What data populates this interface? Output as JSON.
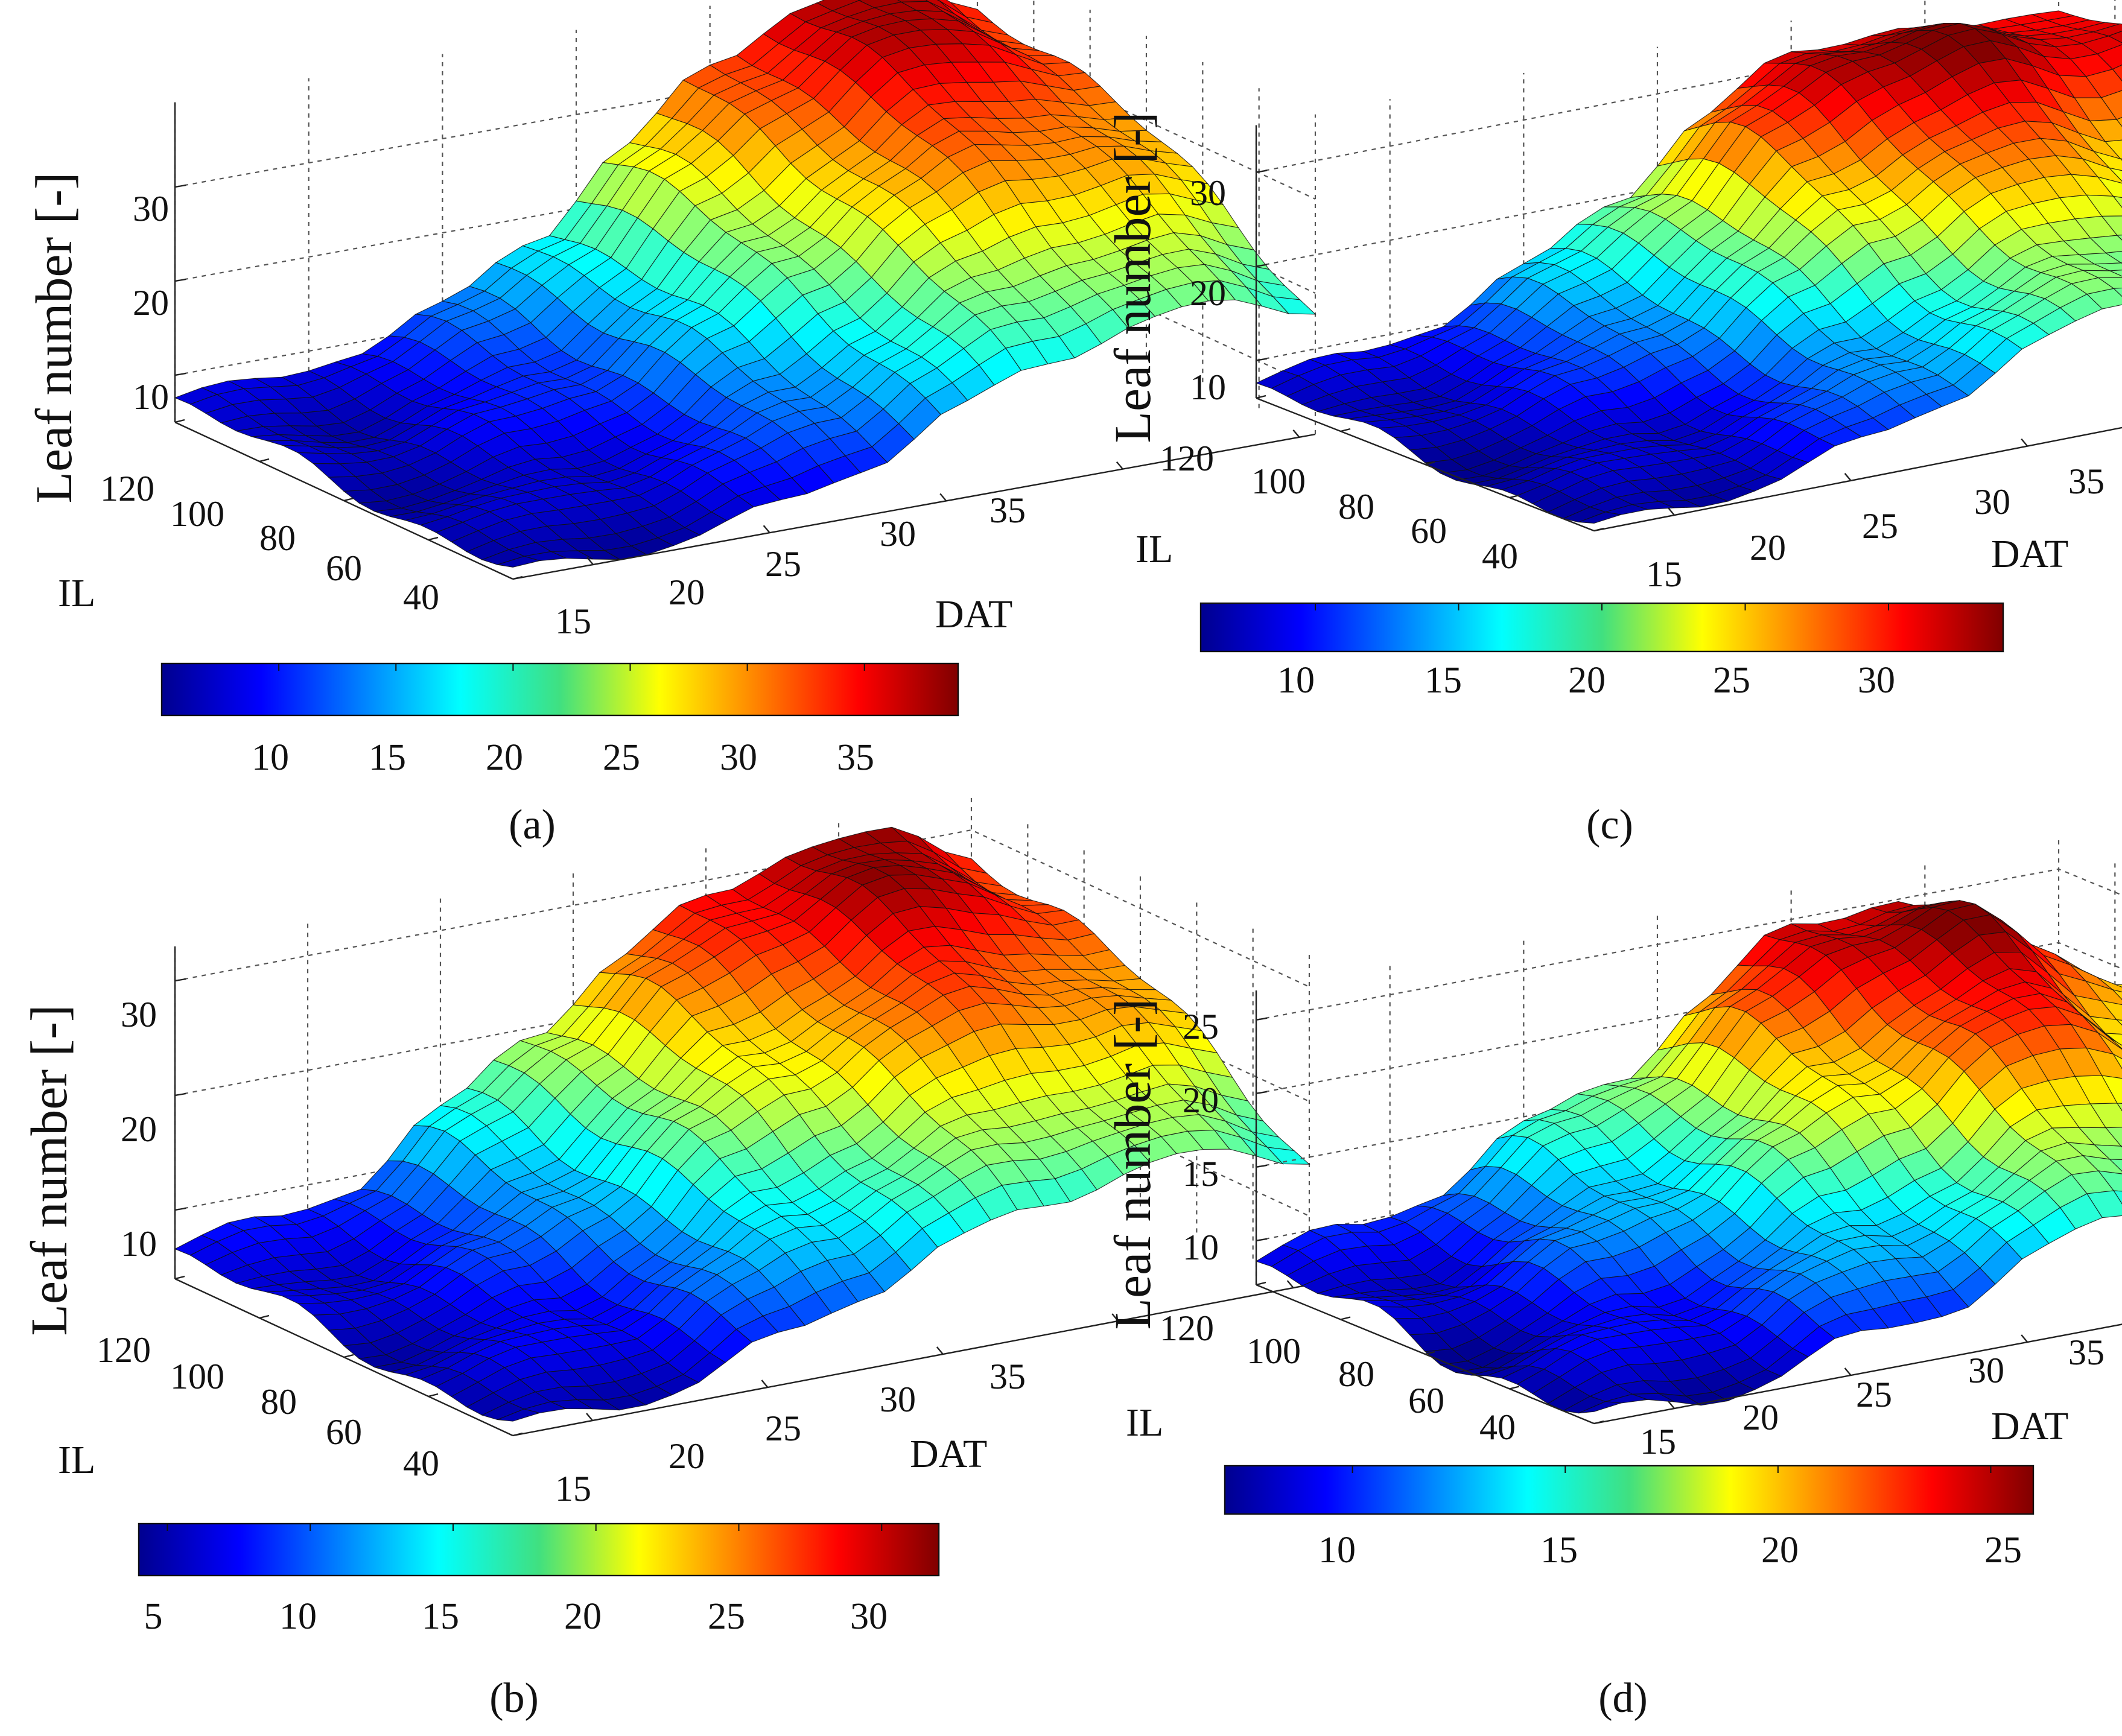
{
  "figure": {
    "colormap": [
      "#00008f",
      "#0000ff",
      "#0080ff",
      "#00ffff",
      "#80ff80",
      "#ffff00",
      "#ff8000",
      "#ff0000",
      "#800000"
    ]
  },
  "chart_data": [
    {
      "type": "surface",
      "panel": "a",
      "caption": "(a)",
      "zlabel": "Leaf number [-]",
      "ylabel": "IL",
      "xlabel": "DAT",
      "x_ticks": [
        "15",
        "20",
        "25",
        "30",
        "35"
      ],
      "y_ticks": [
        "120",
        "100",
        "80",
        "60",
        "40"
      ],
      "z_ticks": [
        "10",
        "20",
        "30"
      ],
      "colorbar_ticks": [
        "10",
        "15",
        "20",
        "25",
        "30",
        "35"
      ],
      "x_range": [
        14,
        35
      ],
      "y_range": [
        30,
        120
      ],
      "z_range": [
        5,
        39
      ],
      "colorbar_range": [
        5,
        39
      ],
      "surface_levels": [
        7,
        7,
        9,
        12,
        18,
        26,
        33,
        38,
        38,
        34
      ]
    },
    {
      "type": "surface",
      "panel": "b",
      "caption": "(b)",
      "zlabel": "Leaf number [-]",
      "ylabel": "IL",
      "xlabel": "DAT",
      "x_ticks": [
        "15",
        "20",
        "25",
        "30",
        "35"
      ],
      "y_ticks": [
        "120",
        "100",
        "80",
        "60",
        "40"
      ],
      "z_ticks": [
        "10",
        "20",
        "30"
      ],
      "colorbar_ticks": [
        "5",
        "10",
        "15",
        "20",
        "25",
        "30"
      ],
      "x_range": [
        14,
        35
      ],
      "y_range": [
        30,
        120
      ],
      "z_range": [
        4,
        33
      ],
      "colorbar_range": [
        4,
        32
      ],
      "surface_levels": [
        6,
        7,
        9,
        14,
        20,
        25,
        29,
        32,
        31,
        28
      ]
    },
    {
      "type": "surface",
      "panel": "c",
      "caption": "(c)",
      "zlabel": "Leaf number [-]",
      "ylabel": "IL",
      "xlabel": "DAT",
      "x_ticks": [
        "15",
        "20",
        "25",
        "30",
        "35"
      ],
      "y_ticks": [
        "120",
        "100",
        "80",
        "60",
        "40"
      ],
      "z_ticks": [
        "10",
        "20",
        "30"
      ],
      "colorbar_ticks": [
        "10",
        "15",
        "20",
        "25",
        "30"
      ],
      "x_range": [
        14,
        35
      ],
      "y_range": [
        30,
        120
      ],
      "z_range": [
        6,
        35
      ],
      "colorbar_range": [
        6,
        34
      ],
      "surface_levels": [
        7,
        8,
        10,
        14,
        20,
        27,
        32,
        33,
        30,
        31
      ]
    },
    {
      "type": "surface",
      "panel": "d",
      "caption": "(d)",
      "zlabel": "Leaf number [-]",
      "ylabel": "IL",
      "xlabel": "DAT",
      "x_ticks": [
        "15",
        "20",
        "25",
        "30",
        "35"
      ],
      "y_ticks": [
        "120",
        "100",
        "80",
        "60",
        "40"
      ],
      "z_ticks": [
        "10",
        "15",
        "20",
        "25"
      ],
      "colorbar_ticks": [
        "10",
        "15",
        "20",
        "25"
      ],
      "x_range": [
        14,
        35
      ],
      "y_range": [
        30,
        120
      ],
      "z_range": [
        7,
        27
      ],
      "colorbar_range": [
        7,
        26
      ],
      "surface_levels": [
        8,
        9,
        11,
        14,
        17,
        21,
        25,
        26,
        22,
        19
      ]
    }
  ]
}
